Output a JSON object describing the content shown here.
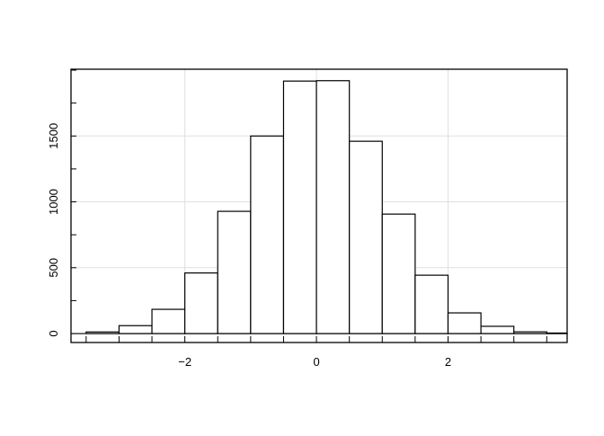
{
  "chart_data": {
    "type": "bar",
    "subtype": "histogram",
    "title": "",
    "xlabel": "",
    "ylabel": "",
    "bin_edges": [
      -3.5,
      -3.0,
      -2.5,
      -2.0,
      -1.5,
      -1.0,
      -0.5,
      0.0,
      0.5,
      1.0,
      1.5,
      2.0,
      2.5,
      3.0,
      3.5,
      4.0
    ],
    "values": [
      12,
      60,
      184,
      460,
      928,
      1500,
      1917,
      1920,
      1460,
      907,
      443,
      157,
      55,
      13,
      4
    ],
    "xlim": [
      -3.73,
      3.81
    ],
    "ylim": [
      -68,
      2007
    ],
    "x_ticks": [
      -2,
      0,
      2
    ],
    "x_tick_labels": [
      "−2",
      "0",
      "2"
    ],
    "y_ticks": [
      0,
      500,
      1000,
      1500
    ],
    "y_tick_labels": [
      "0",
      "500",
      "1000",
      "1500"
    ],
    "grid": true,
    "bar_fill": "#ffffff",
    "bar_stroke": "#000000",
    "grid_color": "#e0e0e0"
  }
}
